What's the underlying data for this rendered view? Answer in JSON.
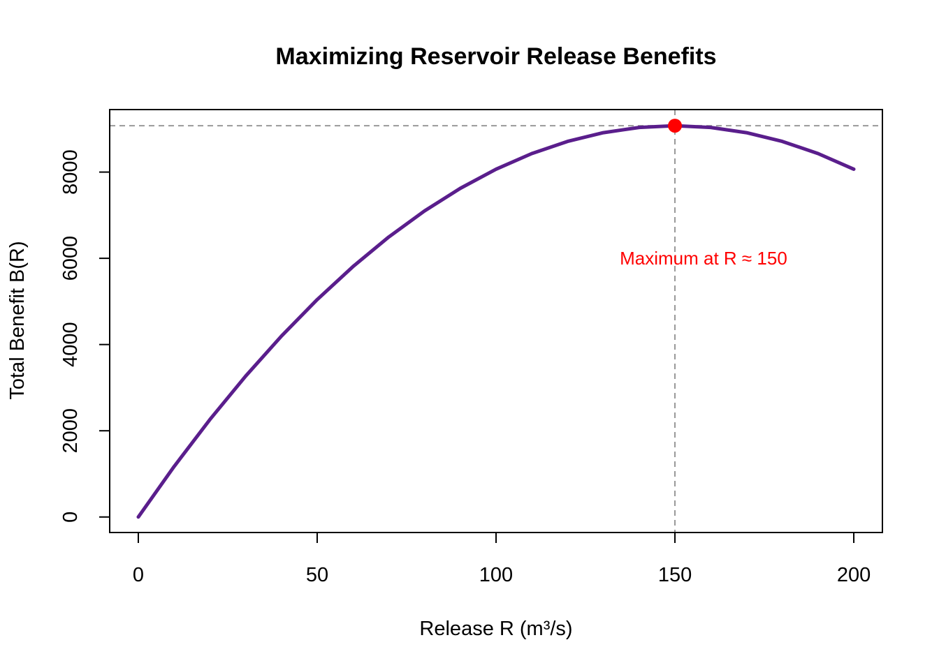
{
  "chart_data": {
    "type": "line",
    "title": "Maximizing Reservoir Release Benefits",
    "xlabel": "Release R (m³/s)",
    "ylabel": "Total Benefit B(R)",
    "xlim": [
      -8,
      208
    ],
    "ylim": [
      -360,
      9450
    ],
    "x_ticks": [
      0,
      50,
      100,
      150,
      200
    ],
    "y_ticks": [
      0,
      2000,
      4000,
      6000,
      8000
    ],
    "grid": false,
    "series": [
      {
        "name": "B(R)",
        "color": "#5a1e8c",
        "model": "B(R) = 121*R - 0.4033*R^2",
        "x": [
          0,
          10,
          20,
          30,
          40,
          50,
          60,
          70,
          80,
          90,
          100,
          110,
          120,
          130,
          140,
          150,
          160,
          170,
          180,
          190,
          200
        ],
        "values": [
          0,
          1170,
          2259,
          3267,
          4195,
          5042,
          5808,
          6494,
          7099,
          7623,
          8067,
          8430,
          8712,
          8914,
          9035,
          9076,
          9035,
          8914,
          8712,
          8430,
          8067
        ]
      }
    ],
    "max_point": {
      "x": 150,
      "y": 9076,
      "color": "#ff0000"
    },
    "reference_lines": [
      {
        "orientation": "horizontal",
        "value": 9076,
        "color": "#999999",
        "style": "dashed"
      },
      {
        "orientation": "vertical",
        "value": 150,
        "color": "#999999",
        "style": "dashed"
      }
    ],
    "annotation": {
      "text": "Maximum at R ≈ 150",
      "x": 158,
      "y": 6000,
      "color": "#ff0000"
    }
  }
}
